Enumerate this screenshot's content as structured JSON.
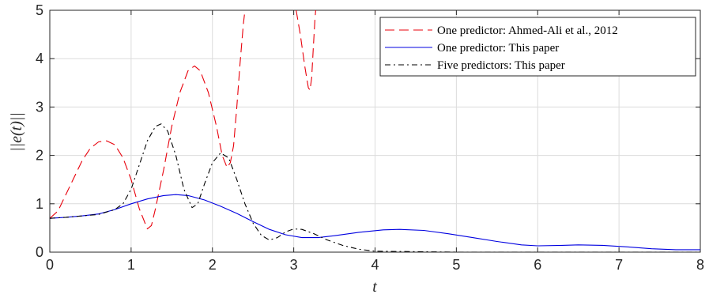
{
  "chart_data": {
    "type": "line",
    "title": "",
    "xlabel": "t",
    "ylabel": "||e(t)||",
    "xlim": [
      0,
      8
    ],
    "ylim": [
      0,
      5
    ],
    "xticks": [
      0,
      1,
      2,
      3,
      4,
      5,
      6,
      7,
      8
    ],
    "yticks": [
      0,
      1,
      2,
      3,
      4,
      5
    ],
    "grid": true,
    "legend_position": "top-right",
    "series": [
      {
        "name": "One predictor: Ahmed-Ali et al., 2012",
        "color": "#e8000b",
        "dash": "dashed",
        "segments": [
          [
            [
              0,
              0.7
            ],
            [
              0.1,
              0.85
            ],
            [
              0.2,
              1.2
            ],
            [
              0.3,
              1.55
            ],
            [
              0.4,
              1.9
            ],
            [
              0.5,
              2.15
            ],
            [
              0.6,
              2.28
            ],
            [
              0.7,
              2.3
            ],
            [
              0.8,
              2.22
            ],
            [
              0.9,
              1.95
            ],
            [
              1.0,
              1.5
            ],
            [
              1.1,
              0.9
            ],
            [
              1.2,
              0.48
            ],
            [
              1.25,
              0.55
            ],
            [
              1.3,
              0.9
            ],
            [
              1.4,
              1.7
            ],
            [
              1.5,
              2.6
            ],
            [
              1.6,
              3.3
            ],
            [
              1.7,
              3.75
            ],
            [
              1.78,
              3.85
            ],
            [
              1.85,
              3.75
            ],
            [
              1.95,
              3.3
            ],
            [
              2.05,
              2.6
            ],
            [
              2.12,
              2.0
            ],
            [
              2.18,
              1.75
            ],
            [
              2.22,
              1.85
            ],
            [
              2.26,
              2.2
            ],
            [
              2.3,
              3.0
            ],
            [
              2.34,
              3.9
            ],
            [
              2.38,
              4.7
            ],
            [
              2.4,
              5.0
            ]
          ],
          [
            [
              3.03,
              5.0
            ],
            [
              3.08,
              4.5
            ],
            [
              3.14,
              3.8
            ],
            [
              3.18,
              3.4
            ],
            [
              3.2,
              3.35
            ],
            [
              3.22,
              3.6
            ],
            [
              3.24,
              4.2
            ],
            [
              3.26,
              4.8
            ],
            [
              3.27,
              5.0
            ]
          ]
        ]
      },
      {
        "name": "One predictor: This paper",
        "color": "#0000e0",
        "dash": "solid",
        "segments": [
          [
            [
              0,
              0.7
            ],
            [
              0.2,
              0.72
            ],
            [
              0.4,
              0.75
            ],
            [
              0.6,
              0.79
            ],
            [
              0.8,
              0.88
            ],
            [
              1.0,
              1.0
            ],
            [
              1.2,
              1.1
            ],
            [
              1.4,
              1.17
            ],
            [
              1.55,
              1.19
            ],
            [
              1.7,
              1.17
            ],
            [
              1.9,
              1.08
            ],
            [
              2.1,
              0.95
            ],
            [
              2.3,
              0.8
            ],
            [
              2.5,
              0.63
            ],
            [
              2.7,
              0.47
            ],
            [
              2.9,
              0.36
            ],
            [
              3.1,
              0.3
            ],
            [
              3.3,
              0.3
            ],
            [
              3.5,
              0.34
            ],
            [
              3.8,
              0.41
            ],
            [
              4.1,
              0.46
            ],
            [
              4.3,
              0.47
            ],
            [
              4.6,
              0.45
            ],
            [
              4.9,
              0.38
            ],
            [
              5.2,
              0.3
            ],
            [
              5.5,
              0.22
            ],
            [
              5.8,
              0.15
            ],
            [
              6.0,
              0.13
            ],
            [
              6.3,
              0.14
            ],
            [
              6.5,
              0.15
            ],
            [
              6.8,
              0.14
            ],
            [
              7.1,
              0.11
            ],
            [
              7.4,
              0.07
            ],
            [
              7.7,
              0.05
            ],
            [
              8.0,
              0.05
            ]
          ]
        ]
      },
      {
        "name": "Five predictors: This paper",
        "color": "#000000",
        "dash": "dashdot",
        "segments": [
          [
            [
              0,
              0.7
            ],
            [
              0.2,
              0.72
            ],
            [
              0.4,
              0.75
            ],
            [
              0.6,
              0.78
            ],
            [
              0.8,
              0.88
            ],
            [
              0.9,
              1.0
            ],
            [
              1.0,
              1.3
            ],
            [
              1.1,
              1.8
            ],
            [
              1.2,
              2.3
            ],
            [
              1.3,
              2.6
            ],
            [
              1.37,
              2.65
            ],
            [
              1.45,
              2.5
            ],
            [
              1.55,
              2.0
            ],
            [
              1.65,
              1.3
            ],
            [
              1.75,
              0.92
            ],
            [
              1.82,
              1.0
            ],
            [
              1.9,
              1.4
            ],
            [
              2.0,
              1.85
            ],
            [
              2.1,
              2.05
            ],
            [
              2.2,
              1.95
            ],
            [
              2.3,
              1.5
            ],
            [
              2.4,
              1.0
            ],
            [
              2.5,
              0.6
            ],
            [
              2.6,
              0.35
            ],
            [
              2.7,
              0.25
            ],
            [
              2.8,
              0.3
            ],
            [
              2.9,
              0.42
            ],
            [
              3.0,
              0.48
            ],
            [
              3.1,
              0.47
            ],
            [
              3.25,
              0.38
            ],
            [
              3.4,
              0.26
            ],
            [
              3.6,
              0.14
            ],
            [
              3.8,
              0.06
            ],
            [
              4.0,
              0.02
            ],
            [
              4.5,
              0.01
            ],
            [
              5.0,
              0.0
            ],
            [
              6.0,
              0.0
            ],
            [
              7.0,
              0.0
            ],
            [
              8.0,
              0.0
            ]
          ]
        ]
      }
    ]
  }
}
